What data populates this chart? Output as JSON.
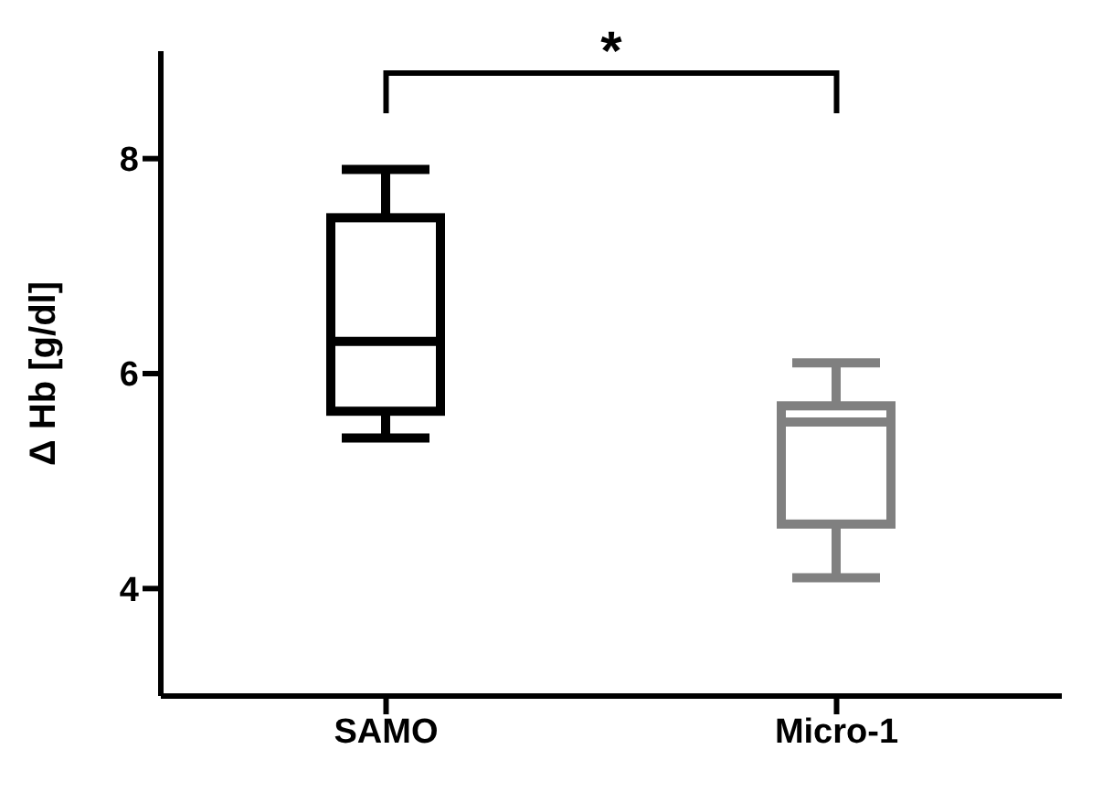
{
  "chart_data": {
    "type": "box",
    "categories": [
      "SAMO",
      "Micro-1"
    ],
    "boxes": [
      {
        "low": 5.4,
        "q1": 5.65,
        "median": 6.3,
        "q3": 7.45,
        "high": 7.9
      },
      {
        "low": 4.1,
        "q1": 4.6,
        "median": 5.55,
        "q3": 5.7,
        "high": 6.1
      }
    ],
    "colors": [
      "#000000",
      "#808080"
    ],
    "ylabel": "Δ Hb [g/dl]",
    "ylim": [
      3,
      9
    ],
    "yticks": [
      4,
      6,
      8
    ],
    "annotations": [
      "*"
    ]
  }
}
